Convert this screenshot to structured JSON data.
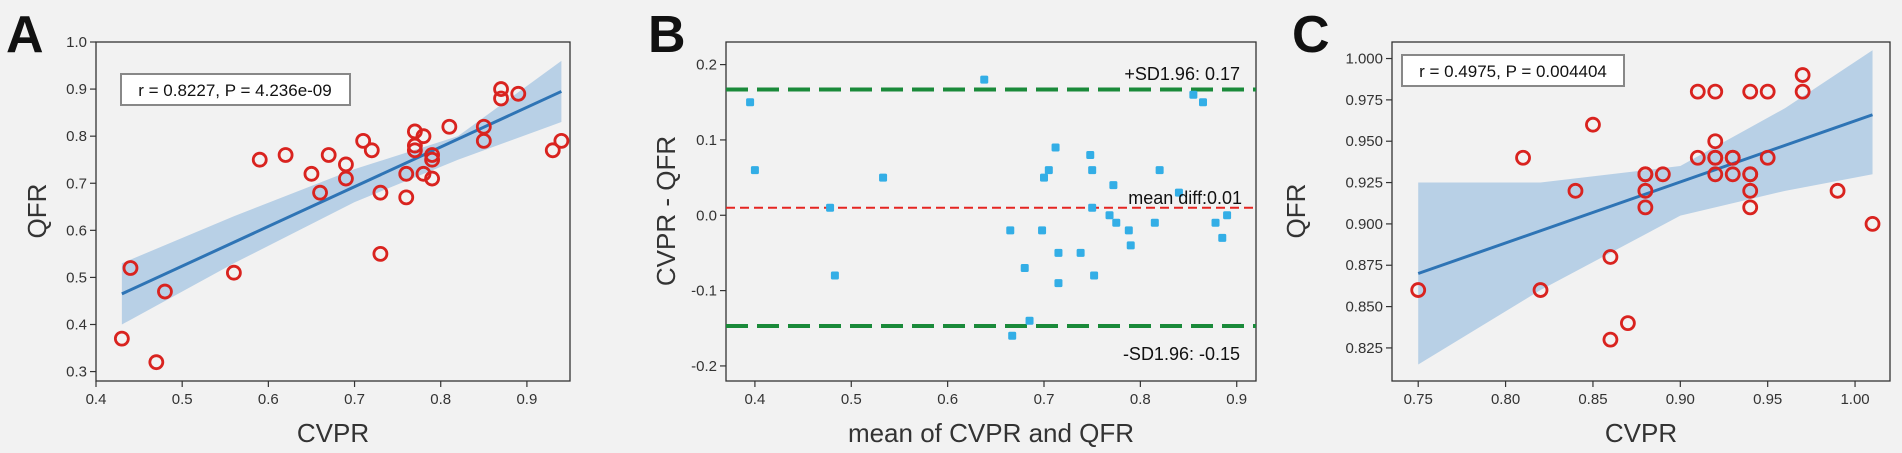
{
  "chart_data": [
    {
      "type": "scatter",
      "panel_label": "A",
      "xlabel": "CVPR",
      "ylabel": "QFR",
      "xlim": [
        0.4,
        0.95
      ],
      "ylim": [
        0.28,
        1.0
      ],
      "xticks": [
        0.4,
        0.5,
        0.6,
        0.7,
        0.8,
        0.9
      ],
      "xtick_labels": [
        "0.4",
        "0.5",
        "0.6",
        "0.7",
        "0.8",
        "0.9"
      ],
      "yticks": [
        0.3,
        0.4,
        0.5,
        0.6,
        0.7,
        0.8,
        0.9,
        1.0
      ],
      "ytick_labels": [
        "0.3",
        "0.4",
        "0.5",
        "0.6",
        "0.7",
        "0.8",
        "0.9",
        "1.0"
      ],
      "annotation": "r = 0.8227, P = 4.236e-09",
      "fit": {
        "x": [
          0.43,
          0.94
        ],
        "y": [
          0.465,
          0.895
        ]
      },
      "ci_upper": [
        [
          0.43,
          0.53
        ],
        [
          0.56,
          0.63
        ],
        [
          0.7,
          0.73
        ],
        [
          0.82,
          0.8
        ],
        [
          0.94,
          0.96
        ]
      ],
      "ci_lower": [
        [
          0.43,
          0.4
        ],
        [
          0.56,
          0.53
        ],
        [
          0.7,
          0.66
        ],
        [
          0.82,
          0.75
        ],
        [
          0.94,
          0.83
        ]
      ],
      "points": {
        "x": [
          0.43,
          0.44,
          0.47,
          0.48,
          0.56,
          0.59,
          0.62,
          0.65,
          0.66,
          0.67,
          0.69,
          0.69,
          0.71,
          0.72,
          0.73,
          0.73,
          0.76,
          0.76,
          0.77,
          0.77,
          0.77,
          0.78,
          0.78,
          0.79,
          0.79,
          0.79,
          0.81,
          0.85,
          0.85,
          0.87,
          0.87,
          0.89,
          0.93,
          0.94
        ],
        "y": [
          0.37,
          0.52,
          0.32,
          0.47,
          0.51,
          0.75,
          0.76,
          0.72,
          0.68,
          0.76,
          0.71,
          0.74,
          0.79,
          0.77,
          0.68,
          0.55,
          0.67,
          0.72,
          0.81,
          0.77,
          0.78,
          0.8,
          0.72,
          0.71,
          0.75,
          0.76,
          0.82,
          0.79,
          0.82,
          0.88,
          0.9,
          0.89,
          0.77,
          0.79
        ]
      }
    },
    {
      "type": "scatter",
      "panel_label": "B",
      "xlabel": "mean of CVPR and QFR",
      "ylabel": "CVPR - QFR",
      "xlim": [
        0.37,
        0.92
      ],
      "ylim": [
        -0.22,
        0.23
      ],
      "xticks": [
        0.4,
        0.5,
        0.6,
        0.7,
        0.8,
        0.9
      ],
      "xtick_labels": [
        "0.4",
        "0.5",
        "0.6",
        "0.7",
        "0.8",
        "0.9"
      ],
      "yticks": [
        -0.2,
        -0.1,
        0.0,
        0.1,
        0.2
      ],
      "ytick_labels": [
        "-0.2",
        "-0.1",
        "0.0",
        "0.1",
        "0.2"
      ],
      "mean_diff": 0.01,
      "upper_loa": 0.167,
      "lower_loa": -0.147,
      "mean_label": "mean diff:0.01",
      "upper_label": "+SD1.96: 0.17",
      "lower_label": "-SD1.96: -0.15",
      "points": {
        "x": [
          0.395,
          0.4,
          0.478,
          0.483,
          0.533,
          0.638,
          0.665,
          0.667,
          0.68,
          0.685,
          0.698,
          0.7,
          0.705,
          0.712,
          0.715,
          0.715,
          0.738,
          0.748,
          0.75,
          0.752,
          0.75,
          0.768,
          0.772,
          0.775,
          0.788,
          0.79,
          0.815,
          0.82,
          0.84,
          0.855,
          0.865,
          0.878,
          0.885,
          0.89
        ],
        "y": [
          0.15,
          0.06,
          0.01,
          -0.08,
          0.05,
          0.18,
          -0.02,
          -0.16,
          -0.07,
          -0.14,
          -0.02,
          0.05,
          0.06,
          0.09,
          -0.05,
          -0.09,
          -0.05,
          0.08,
          0.06,
          -0.08,
          0.01,
          0.0,
          0.04,
          -0.01,
          -0.02,
          -0.04,
          -0.01,
          0.06,
          0.03,
          0.16,
          0.15,
          -0.01,
          -0.03,
          0.0
        ]
      }
    },
    {
      "type": "scatter",
      "panel_label": "C",
      "xlabel": "CVPR",
      "ylabel": "QFR",
      "xlim": [
        0.735,
        1.02
      ],
      "ylim": [
        0.805,
        1.01
      ],
      "xticks": [
        0.75,
        0.8,
        0.85,
        0.9,
        0.95,
        1.0
      ],
      "xtick_labels": [
        "0.75",
        "0.80",
        "0.85",
        "0.90",
        "0.95",
        "1.00"
      ],
      "yticks": [
        0.825,
        0.85,
        0.875,
        0.9,
        0.925,
        0.95,
        0.975,
        1.0
      ],
      "ytick_labels": [
        "0.825",
        "0.850",
        "0.875",
        "0.900",
        "0.925",
        "0.950",
        "0.975",
        "1.000"
      ],
      "annotation": "r = 0.4975, P = 0.004404",
      "fit": {
        "x": [
          0.75,
          1.01
        ],
        "y": [
          0.87,
          0.966
        ]
      },
      "ci_upper": [
        [
          0.75,
          0.925
        ],
        [
          0.82,
          0.925
        ],
        [
          0.9,
          0.935
        ],
        [
          0.96,
          0.97
        ],
        [
          1.01,
          1.005
        ]
      ],
      "ci_lower": [
        [
          0.75,
          0.815
        ],
        [
          0.82,
          0.86
        ],
        [
          0.9,
          0.905
        ],
        [
          0.96,
          0.92
        ],
        [
          1.01,
          0.93
        ]
      ],
      "points": {
        "x": [
          0.75,
          0.81,
          0.82,
          0.84,
          0.85,
          0.86,
          0.86,
          0.87,
          0.88,
          0.88,
          0.88,
          0.88,
          0.89,
          0.91,
          0.91,
          0.92,
          0.92,
          0.92,
          0.92,
          0.92,
          0.93,
          0.93,
          0.93,
          0.94,
          0.94,
          0.94,
          0.94,
          0.94,
          0.95,
          0.95,
          0.97,
          0.97,
          0.99,
          1.01
        ],
        "y": [
          0.86,
          0.94,
          0.86,
          0.92,
          0.96,
          0.88,
          0.83,
          0.84,
          0.93,
          0.92,
          0.91,
          0.93,
          0.93,
          0.98,
          0.94,
          0.98,
          0.95,
          0.94,
          0.94,
          0.93,
          0.94,
          0.93,
          0.94,
          0.98,
          0.93,
          0.92,
          0.91,
          0.93,
          0.94,
          0.98,
          0.98,
          0.99,
          0.92,
          0.9
        ]
      }
    }
  ],
  "colors": {
    "marker": "#d9231f",
    "fit_line": "#2e74b5",
    "band": "#a9c7e2",
    "ba_point": "#33aee6",
    "loa_line": "#1a8a3a",
    "mean_line": "#e52521"
  }
}
